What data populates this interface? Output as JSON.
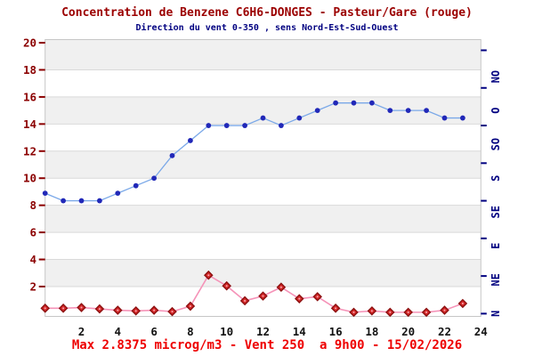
{
  "header": {
    "title": "Concentration de Benzene C6H6-DONGES - Pasteur/Gare (rouge)",
    "subtitle": "Direction du vent 0-350 , sens Nord-Est-Sud-Ouest"
  },
  "footer": {
    "text": "Max 2.8375 microg/m3 - Vent 250  a 9h00 - 15/02/2026"
  },
  "colors": {
    "title": "#9b0000",
    "subtitle": "#000080",
    "footer": "#ee0000",
    "left_axis_labels": "#8b0000",
    "x_axis_labels": "#111111",
    "right_axis_labels": "#000080",
    "band_gray": "#f0f0f0",
    "band_white": "#ffffff",
    "gridline": "#d9d9d9",
    "plot_border": "#c6c6c6",
    "wind_line": "#7aa8e8",
    "wind_marker": "#2128b8",
    "benzene_line": "#f593b8",
    "benzene_marker": "#d62a2a",
    "benzene_marker_edge": "#8c1010",
    "benzene_marker_center": "#f9aab4"
  },
  "chart_data": {
    "type": "line",
    "x_hours": [
      0,
      1,
      2,
      3,
      4,
      5,
      6,
      7,
      8,
      9,
      10,
      11,
      12,
      13,
      14,
      15,
      16,
      17,
      18,
      19,
      20,
      21,
      22,
      23
    ],
    "series": [
      {
        "name": "Direction du vent",
        "unit": "degres",
        "axis": "right",
        "marker": "circle",
        "values": [
          160,
          150,
          150,
          150,
          160,
          170,
          180,
          210,
          230,
          250,
          250,
          250,
          260,
          250,
          260,
          270,
          280,
          280,
          280,
          270,
          270,
          270,
          260,
          260
        ]
      },
      {
        "name": "Concentration de Benzene",
        "unit": "microg/m3",
        "axis": "left",
        "marker": "diamond",
        "values": [
          0.4,
          0.4,
          0.45,
          0.35,
          0.25,
          0.2,
          0.25,
          0.15,
          0.55,
          2.8375,
          2.05,
          0.95,
          1.3,
          1.95,
          1.1,
          1.25,
          0.4,
          0.1,
          0.2,
          0.1,
          0.1,
          0.1,
          0.25,
          0.75
        ]
      }
    ],
    "left_axis": {
      "min": 0,
      "max": 20,
      "tick_step": 2,
      "ticks": [
        2,
        4,
        6,
        8,
        10,
        12,
        14,
        16,
        18,
        20
      ]
    },
    "right_axis": {
      "min": 0,
      "max": 360,
      "tick_step_deg": 50,
      "direction_labels": [
        "N",
        "NE",
        "E",
        "SE",
        "S",
        "SO",
        "O",
        "NO"
      ],
      "direction_degrees": [
        0,
        45,
        90,
        135,
        180,
        225,
        270,
        315
      ]
    },
    "x_axis": {
      "min": 0,
      "max": 24,
      "tick_step": 2,
      "ticks": [
        2,
        4,
        6,
        8,
        10,
        12,
        14,
        16,
        18,
        20,
        22,
        24
      ]
    },
    "grid": "horizontal-bands",
    "legend": "none",
    "max_info": {
      "max_value": 2.8375,
      "max_unit": "microg/m3",
      "wind_at_max": 250,
      "time_at_max": "9h00",
      "date": "15/02/2026"
    }
  }
}
